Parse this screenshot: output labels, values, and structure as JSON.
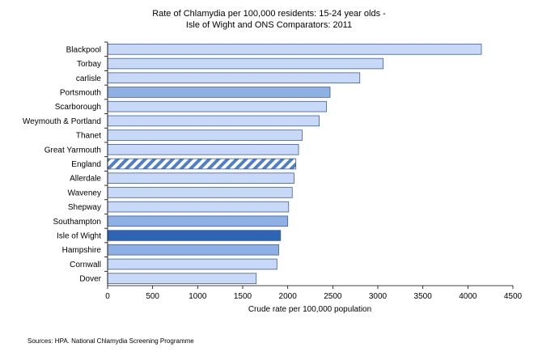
{
  "chart_data": {
    "type": "bar",
    "orientation": "horizontal",
    "title_line1": "Rate of Chlamydia per 100,000 residents: 15-24 year olds -",
    "title_line2": "Isle of Wight and ONS Comparators: 2011",
    "xlabel": "Crude rate per 100,000 population",
    "ylabel": "",
    "xlim": [
      0,
      4500
    ],
    "xticks": [
      0,
      500,
      1000,
      1500,
      2000,
      2500,
      3000,
      3500,
      4000,
      4500
    ],
    "grid": false,
    "categories": [
      "Blackpool",
      "Torbay",
      "carlisle",
      "Portsmouth",
      "Scarborough",
      "Weymouth & Portland",
      "Thanet",
      "Great Yarmouth",
      "England",
      "Allerdale",
      "Waveney",
      "Shepway",
      "Southampton",
      "Isle of Wight",
      "Hampshire",
      "Cornwall",
      "Dover"
    ],
    "values": [
      4150,
      3060,
      2800,
      2470,
      2430,
      2350,
      2160,
      2120,
      2090,
      2070,
      2050,
      2010,
      2000,
      1920,
      1900,
      1880,
      1650
    ],
    "styles": [
      "light",
      "light",
      "light",
      "medium",
      "light",
      "light",
      "light",
      "light",
      "hatched",
      "light",
      "light",
      "light",
      "medium",
      "dark",
      "medium",
      "light",
      "light"
    ],
    "colors": {
      "light": "#c7d9f7",
      "medium": "#8fb0e3",
      "dark": "#2e64b4",
      "hatch": "#4f7fc4",
      "outline": "#3d5f9c"
    }
  },
  "footer": {
    "source": "Sources: HPA.  National Chlamydia Screening Programme"
  }
}
